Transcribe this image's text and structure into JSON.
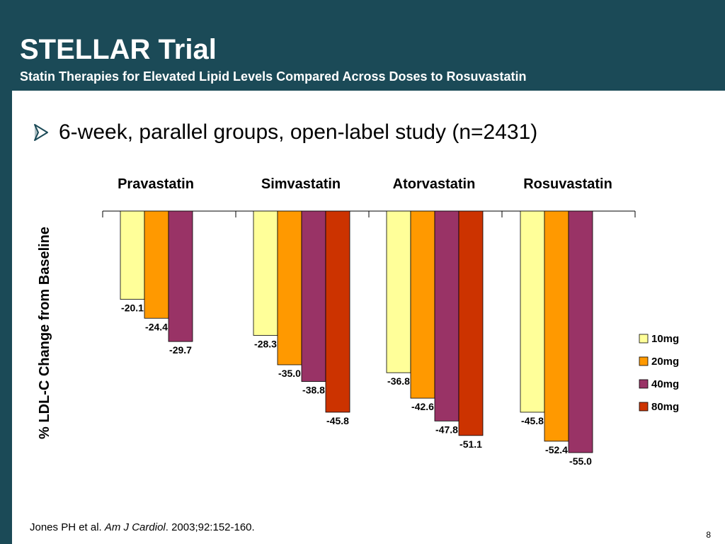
{
  "slide": {
    "title": "STELLAR Trial",
    "subtitle": "Statin Therapies for Elevated Lipid Levels Compared Across Doses to Rosuvastatin",
    "bullet": "6-week, parallel groups, open-label study (n=2431)",
    "citation": {
      "authors": "Jones PH et al. ",
      "journal": "Am J Cardiol",
      "details": ". 2003;92:152-160."
    },
    "page_number": "8"
  },
  "colors": {
    "header_bg": "#1b4a57",
    "content_bg": "#ffffff",
    "bullet_arrow": "#1b4a57"
  },
  "chart_data": {
    "type": "bar",
    "ylabel": "% LDL-C Change from Baseline",
    "categories": [
      "Pravastatin",
      "Simvastatin",
      "Atorvastatin",
      "Rosuvastatin"
    ],
    "ylim": [
      -60,
      0
    ],
    "legend_position": "right",
    "series": [
      {
        "name": "10mg",
        "color": "#ffff99",
        "values": [
          -20.1,
          -28.3,
          -36.8,
          -45.8
        ]
      },
      {
        "name": "20mg",
        "color": "#ff9900",
        "values": [
          -24.4,
          -35.0,
          -42.6,
          -52.4
        ]
      },
      {
        "name": "40mg",
        "color": "#993366",
        "values": [
          -29.7,
          -38.8,
          -47.8,
          -55.0
        ]
      },
      {
        "name": "80mg",
        "color": "#cc3300",
        "values": [
          null,
          -45.8,
          -51.1,
          null
        ]
      }
    ]
  }
}
